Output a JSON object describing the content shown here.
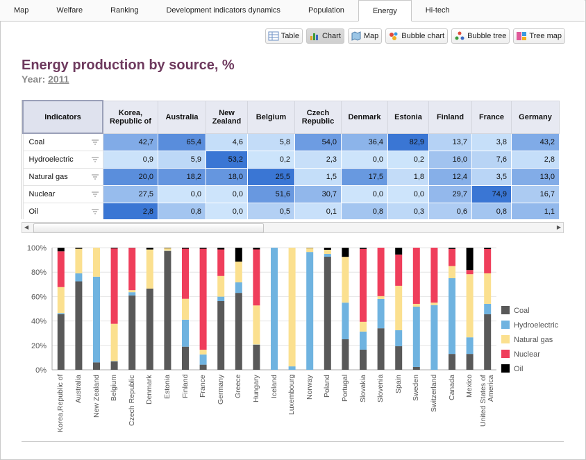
{
  "tabs": [
    "Map",
    "Welfare",
    "Ranking",
    "Development indicators dynamics",
    "Population",
    "Energy",
    "Hi-tech"
  ],
  "active_tab": 5,
  "toolbar": [
    "Table",
    "Chart",
    "Map",
    "Bubble chart",
    "Bubble tree",
    "Tree map"
  ],
  "active_tool": 1,
  "header": {
    "title": "Energy production by source, %",
    "year_label": "Year:",
    "year": "2011"
  },
  "table": {
    "columns": [
      "Indicators",
      "Korea, Republic of",
      "Australia",
      "New Zealand",
      "Belgium",
      "Czech Republic",
      "Denmark",
      "Estonia",
      "Finland",
      "France",
      "Germany"
    ],
    "rows": [
      {
        "label": "Coal",
        "cells": [
          "42,7",
          "65,4",
          "4,6",
          "5,8",
          "54,0",
          "36,4",
          "82,9",
          "13,7",
          "3,8",
          "43,2"
        ]
      },
      {
        "label": "Hydroelectric",
        "cells": [
          "0,9",
          "5,9",
          "53,2",
          "0,2",
          "2,3",
          "0,0",
          "0,2",
          "16,0",
          "7,6",
          "2,8"
        ]
      },
      {
        "label": "Natural gas",
        "cells": [
          "20,0",
          "18,2",
          "18,0",
          "25,5",
          "1,5",
          "17,5",
          "1,8",
          "12,4",
          "3,5",
          "13,0"
        ]
      },
      {
        "label": "Nuclear",
        "cells": [
          "27,5",
          "0,0",
          "0,0",
          "51,6",
          "30,7",
          "0,0",
          "0,0",
          "29,7",
          "74,9",
          "16,7"
        ]
      },
      {
        "label": "Oil",
        "cells": [
          "2,8",
          "0,8",
          "0,0",
          "0,5",
          "0,1",
          "0,8",
          "0,3",
          "0,6",
          "0,8",
          "1,1"
        ]
      }
    ]
  },
  "chart_data": {
    "type": "bar",
    "stacking": "percent",
    "categories": [
      "Korea,Republic of",
      "Australia",
      "New Zealand",
      "Belgium",
      "Czech Republic",
      "Denmark",
      "Estonia",
      "Finland",
      "France",
      "Germany",
      "Greece",
      "Hungary",
      "Iceland",
      "Luxembourg",
      "Norway",
      "Poland",
      "Portugal",
      "Slovakia",
      "Slovenia",
      "Spain",
      "Sweden",
      "Switzerland",
      "Canada",
      "Mexico",
      "United States of America"
    ],
    "series": [
      {
        "name": "Coal",
        "color": "#595959",
        "values": [
          42.7,
          65.4,
          4.6,
          5.8,
          54.0,
          36.4,
          82.9,
          13.7,
          3.8,
          43.2,
          63,
          20.5,
          0,
          0,
          0,
          92.6,
          25,
          16.5,
          34,
          19.3,
          2.3,
          0,
          13,
          13,
          45.5
        ]
      },
      {
        "name": "Hydroelectric",
        "color": "#6fb3e0",
        "values": [
          0.9,
          5.9,
          53.2,
          0.2,
          2.3,
          0.0,
          0.2,
          16.0,
          7.6,
          2.8,
          8.6,
          0.2,
          100,
          2.8,
          96.5,
          2.3,
          30,
          14.8,
          24,
          13.1,
          49.4,
          53,
          62,
          13.6,
          8.5
        ]
      },
      {
        "name": "Natural gas",
        "color": "#fbe08f",
        "values": [
          20.0,
          18.2,
          18.0,
          25.5,
          1.5,
          17.5,
          1.8,
          12.4,
          3.5,
          13.0,
          17,
          32,
          0,
          97.2,
          3.3,
          3.4,
          37.5,
          8,
          2.3,
          36.4,
          2.3,
          2,
          10,
          51.7,
          25
        ]
      },
      {
        "name": "Nuclear",
        "color": "#ef3e5b",
        "values": [
          27.5,
          0.0,
          0.0,
          51.6,
          30.7,
          0.0,
          0.0,
          29.7,
          74.9,
          16.7,
          0,
          45.9,
          0,
          0,
          0,
          0,
          0,
          59.7,
          39.7,
          25.6,
          46,
          45,
          14,
          3.4,
          19.9
        ]
      },
      {
        "name": "Oil",
        "color": "#000000",
        "values": [
          2.8,
          0.8,
          0.0,
          0.5,
          0.1,
          0.8,
          0.3,
          0.6,
          0.8,
          1.1,
          11.4,
          1.4,
          0,
          0,
          0.2,
          1.7,
          7.5,
          1,
          0,
          5.6,
          0,
          0,
          1,
          18.3,
          1.1
        ]
      }
    ],
    "ylim": [
      0,
      100
    ],
    "yticks": [
      {
        "value": 0,
        "label": "0%"
      },
      {
        "value": 20,
        "label": "20%"
      },
      {
        "value": 40,
        "label": "40%"
      },
      {
        "value": 60,
        "label": "60%"
      },
      {
        "value": 80,
        "label": "80%"
      },
      {
        "value": 100,
        "label": "100%"
      }
    ],
    "grid": true,
    "legend": "right"
  }
}
